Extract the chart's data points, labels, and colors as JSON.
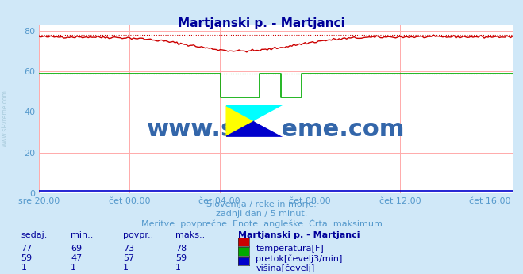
{
  "title": "Martjanski p. - Martjanci",
  "title_color": "#000099",
  "bg_color": "#d0e8f8",
  "plot_bg_color": "#ffffff",
  "grid_color": "#ffaaaa",
  "tick_color": "#5599cc",
  "ylabel_ticks": [
    0,
    20,
    40,
    60,
    80
  ],
  "ylim": [
    0,
    83
  ],
  "xtick_labels": [
    "sre 20:00",
    "čet 00:00",
    "čet 04:00",
    "čet 08:00",
    "čet 12:00",
    "čet 16:00"
  ],
  "xtick_positions": [
    0,
    4,
    8,
    12,
    16,
    20
  ],
  "subtitle_line1": "Slovenija / reke in morje.",
  "subtitle_line2": "zadnji dan / 5 minut.",
  "subtitle_line3": "Meritve: povprečne  Enote: angleške  Črta: maksimum",
  "subtitle_color": "#5599cc",
  "watermark": "www.si-vreme.com",
  "watermark_color": "#3366aa",
  "side_label": "www.si-vreme.com",
  "side_label_color": "#aaccdd",
  "table_header": [
    "sedaj:",
    "min.:",
    "povpr.:",
    "maks.:",
    "Martjanski p. - Martjanci"
  ],
  "table_rows": [
    [
      77,
      69,
      73,
      78,
      "temperatura[F]",
      "#cc0000"
    ],
    [
      59,
      47,
      57,
      59,
      "pretok[čevelj3/min]",
      "#00aa00"
    ],
    [
      1,
      1,
      1,
      1,
      "višina[čevelj]",
      "#0000cc"
    ]
  ],
  "temp_color": "#cc0000",
  "flow_color": "#00aa00",
  "height_color": "#0000cc",
  "temp_max": 78,
  "flow_max": 59,
  "height_max": 1
}
